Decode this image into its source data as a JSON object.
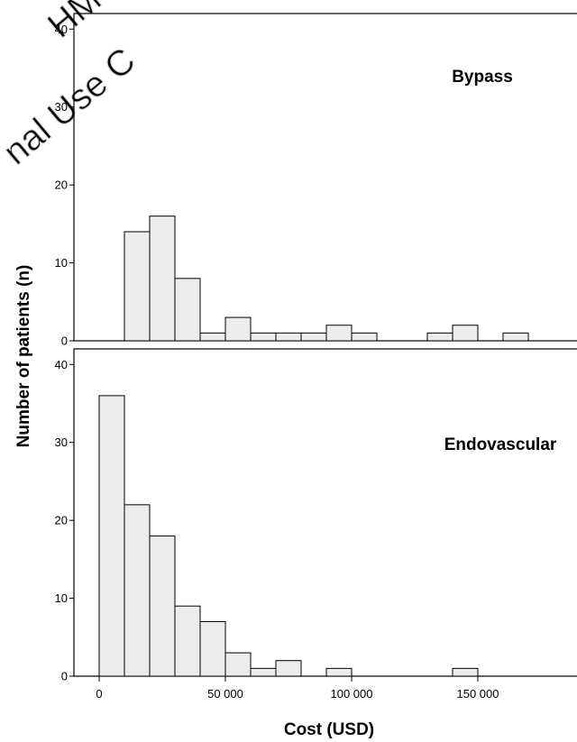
{
  "watermark": {
    "lines": [
      "HM",
      "nal Use C"
    ]
  },
  "chart_data": {
    "type": "bar",
    "xlabel": "Cost (USD)",
    "ylabel": "Number of patients (n)",
    "bin_width": 10000,
    "xlim": [
      -10000,
      190000
    ],
    "x_ticks": [
      0,
      50000,
      100000,
      150000
    ],
    "x_tick_labels": [
      "0",
      "50 000",
      "100 000",
      "150 000"
    ],
    "ylim": [
      0,
      42
    ],
    "y_ticks": [
      0,
      10,
      20,
      30,
      40
    ],
    "y_tick_labels": [
      "0",
      "10",
      "20",
      "30",
      "40"
    ],
    "bar_fill": "#ececec",
    "bar_stroke": "#000000",
    "panels": [
      {
        "label": "Bypass",
        "bins": [
          {
            "x": 10000,
            "count": 14
          },
          {
            "x": 20000,
            "count": 16
          },
          {
            "x": 30000,
            "count": 8
          },
          {
            "x": 40000,
            "count": 1
          },
          {
            "x": 50000,
            "count": 3
          },
          {
            "x": 60000,
            "count": 1
          },
          {
            "x": 70000,
            "count": 1
          },
          {
            "x": 80000,
            "count": 1
          },
          {
            "x": 90000,
            "count": 2
          },
          {
            "x": 100000,
            "count": 1
          },
          {
            "x": 130000,
            "count": 1
          },
          {
            "x": 140000,
            "count": 2
          },
          {
            "x": 160000,
            "count": 1
          }
        ]
      },
      {
        "label": "Endovascular",
        "bins": [
          {
            "x": 0,
            "count": 36
          },
          {
            "x": 10000,
            "count": 22
          },
          {
            "x": 20000,
            "count": 18
          },
          {
            "x": 30000,
            "count": 9
          },
          {
            "x": 40000,
            "count": 7
          },
          {
            "x": 50000,
            "count": 3
          },
          {
            "x": 60000,
            "count": 1
          },
          {
            "x": 70000,
            "count": 2
          },
          {
            "x": 90000,
            "count": 1
          },
          {
            "x": 140000,
            "count": 1
          }
        ]
      }
    ]
  }
}
